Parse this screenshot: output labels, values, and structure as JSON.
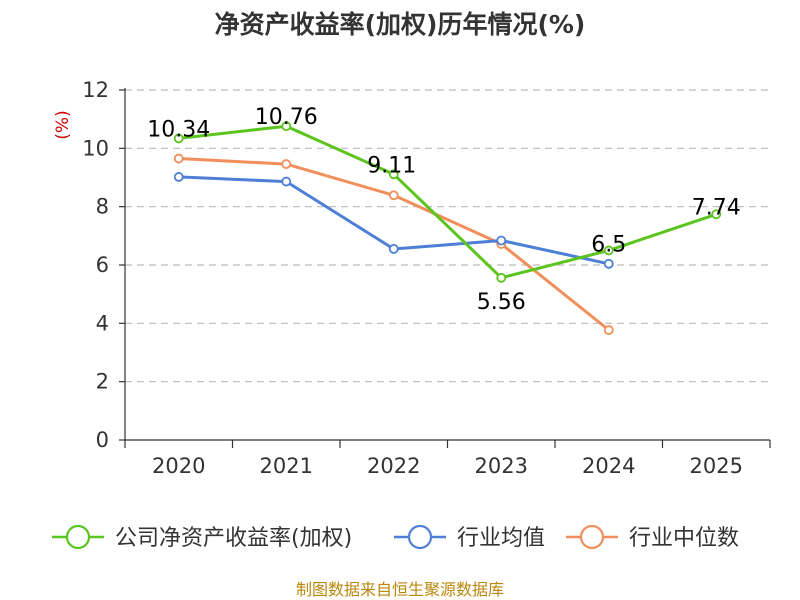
{
  "chart_data": {
    "type": "line",
    "title": "净资产收益率(加权)历年情况(%)",
    "ylabel": "(%)",
    "xlabel": "",
    "categories": [
      "2020",
      "2021",
      "2022",
      "2023",
      "2024",
      "2025"
    ],
    "ylim": [
      0,
      12
    ],
    "yticks": [
      0,
      2,
      4,
      6,
      8,
      10,
      12
    ],
    "grid": true,
    "legend_position": "bottom",
    "series": [
      {
        "name": "公司净资产收益率(加权)",
        "color": "#5cc41e",
        "values": [
          10.34,
          10.76,
          9.11,
          5.56,
          6.5,
          7.74
        ],
        "labels": [
          "10.34",
          "10.76",
          "9.11",
          "5.56",
          "6.5",
          "7.74"
        ]
      },
      {
        "name": "行业均值",
        "color": "#4e7fd6",
        "values": [
          9.02,
          8.86,
          6.55,
          6.84,
          6.04,
          null
        ]
      },
      {
        "name": "行业中位数",
        "color": "#f28e5a",
        "values": [
          9.65,
          9.46,
          8.39,
          6.72,
          3.77,
          null
        ]
      }
    ],
    "source": "制图数据来自恒生聚源数据库"
  }
}
